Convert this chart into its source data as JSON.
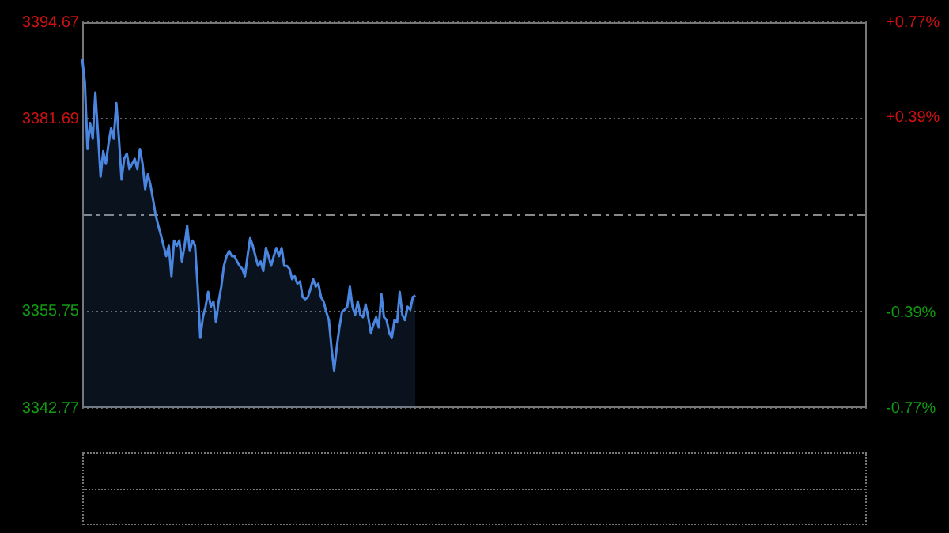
{
  "chart_data": {
    "type": "area",
    "tick_labels": "y",
    "grid": "y",
    "categories": [
      null,
      null,
      null,
      null,
      null,
      null,
      null,
      null,
      null,
      null,
      null,
      null,
      null,
      null,
      null,
      null,
      null,
      null,
      null,
      null,
      null,
      null,
      null,
      null,
      null,
      null,
      null,
      null,
      null,
      null,
      null,
      null,
      null,
      null,
      null,
      null,
      null,
      null,
      null,
      null,
      null,
      null,
      null,
      null,
      null,
      null,
      null,
      null,
      null,
      null,
      null,
      null,
      null,
      null,
      null,
      null,
      null,
      null,
      null,
      null,
      null,
      null,
      null,
      null,
      null,
      null,
      null,
      null,
      null,
      null,
      null,
      null,
      null,
      null,
      null,
      null,
      null,
      null,
      null,
      null,
      null,
      null,
      null,
      null,
      null,
      null,
      null,
      null,
      null,
      null,
      null,
      null,
      null,
      null,
      null,
      null,
      null,
      null,
      null,
      null,
      null,
      null,
      null,
      null,
      null,
      null,
      null,
      null,
      null,
      null,
      null,
      null,
      null,
      null,
      null,
      null,
      null,
      null,
      null,
      null,
      null,
      null,
      null,
      null,
      null,
      null,
      null,
      null,
      null,
      null,
      null,
      null,
      null,
      null,
      null,
      null,
      null,
      null,
      null,
      null,
      null,
      null,
      null,
      null,
      null,
      null,
      null,
      null,
      null,
      null,
      null,
      null,
      null,
      null,
      null,
      null,
      null,
      null,
      null,
      null,
      null,
      null,
      null,
      null,
      null,
      null,
      null,
      null,
      null,
      null,
      null,
      null,
      null,
      null,
      null,
      null,
      null,
      null,
      null,
      null,
      null,
      null,
      null,
      null,
      null,
      null,
      null,
      null,
      null,
      null,
      null,
      null,
      null,
      null,
      null,
      null,
      null,
      null,
      null,
      null,
      null,
      null,
      null,
      null,
      null,
      null,
      null,
      null,
      null,
      null,
      null,
      null,
      null,
      null,
      null,
      null,
      null,
      null,
      null,
      null,
      null,
      null,
      null,
      null,
      null,
      null,
      null,
      null,
      null,
      null,
      null,
      null,
      null,
      null,
      null,
      null,
      null,
      null,
      null,
      null,
      null,
      null,
      null,
      null,
      null,
      null,
      null,
      null,
      null,
      null,
      null,
      null,
      null,
      null,
      null,
      null,
      null,
      null,
      null,
      null,
      null,
      null,
      null,
      null,
      null,
      null,
      null,
      null,
      null,
      null,
      null,
      null,
      null,
      null,
      null,
      null,
      null,
      null,
      null,
      null,
      null,
      null,
      null,
      null,
      null,
      null,
      null,
      null,
      null,
      null,
      null,
      null,
      null,
      null,
      null,
      null,
      null,
      null,
      null,
      null
    ],
    "ylim": [
      3342.77,
      3394.67
    ],
    "yticks": [
      3342.77,
      3355.75,
      3381.69,
      3394.67
    ],
    "y2lim": [
      -0.77,
      0.77
    ],
    "y2ticks": [
      {
        "value": -0.77,
        "label": "-0.77%"
      },
      {
        "value": -0.39,
        "label": "-0.39%"
      },
      {
        "value": 0.39,
        "label": "+0.39%"
      },
      {
        "value": 0.77,
        "label": "+0.77%"
      }
    ],
    "ref_lines": [
      {
        "axis": "y",
        "value": 3368.72,
        "color": "#888888",
        "line_style": "dashed"
      }
    ],
    "series": [
      {
        "color": "#4a86e0",
        "values": [
          3389.7,
          3386.6,
          3377.6,
          3381.1,
          3379.0,
          3385.2,
          3379.7,
          3373.9,
          3377.3,
          3375.6,
          3378.3,
          3380.4,
          3379.0,
          3383.8,
          3379.0,
          3373.5,
          3376.3,
          3377.0,
          3374.9,
          3375.6,
          3376.3,
          3374.9,
          3377.6,
          3375.6,
          3372.2,
          3374.2,
          3372.8,
          3370.8,
          3368.7,
          3367.3,
          3366.0,
          3364.6,
          3363.2,
          3364.6,
          3360.5,
          3365.3,
          3364.6,
          3365.3,
          3362.5,
          3364.6,
          3367.3,
          3363.9,
          3365.3,
          3364.6,
          3359.1,
          3352.2,
          3355.0,
          3356.4,
          3358.4,
          3356.4,
          3357.1,
          3354.3,
          3357.1,
          3359.1,
          3361.9,
          3363.2,
          3363.9,
          3363.2,
          3363.2,
          3362.5,
          3361.9,
          3361.5,
          3360.5,
          3363.2,
          3365.6,
          3364.6,
          3363.2,
          3361.9,
          3362.5,
          3361.2,
          3364.3,
          3363.2,
          3361.9,
          3363.2,
          3364.3,
          3363.2,
          3364.3,
          3361.9,
          3361.9,
          3361.5,
          3360.1,
          3360.5,
          3359.5,
          3359.8,
          3357.7,
          3357.4,
          3357.7,
          3358.8,
          3360.1,
          3359.1,
          3359.5,
          3357.7,
          3357.1,
          3355.7,
          3354.6,
          3350.9,
          3347.8,
          3350.9,
          3353.6,
          3355.7,
          3356.0,
          3356.4,
          3359.1,
          3356.4,
          3355.3,
          3357.1,
          3355.3,
          3355.0,
          3356.7,
          3355.0,
          3352.9,
          3354.0,
          3355.0,
          3353.6,
          3358.1,
          3355.0,
          3354.6,
          3352.9,
          3352.2,
          3354.6,
          3354.3,
          3358.4,
          3355.3,
          3354.6,
          3356.4,
          3356.0,
          3357.7,
          3357.9,
          null,
          null,
          null,
          null,
          null,
          null,
          null,
          null,
          null,
          null,
          null,
          null,
          null,
          null,
          null,
          null,
          null,
          null,
          null,
          null,
          null,
          null,
          null,
          null,
          null,
          null,
          null,
          null,
          null,
          null,
          null,
          null,
          null,
          null,
          null,
          null,
          null,
          null,
          null,
          null,
          null,
          null,
          null,
          null,
          null,
          null,
          null,
          null,
          null,
          null,
          null,
          null,
          null,
          null,
          null,
          null,
          null,
          null,
          null,
          null,
          null,
          null,
          null,
          null,
          null,
          null,
          null,
          null,
          null,
          null,
          null,
          null,
          null,
          null,
          null,
          null,
          null,
          null,
          null,
          null,
          null,
          null,
          null,
          null,
          null,
          null,
          null,
          null,
          null,
          null,
          null,
          null,
          null,
          null,
          null,
          null,
          null,
          null,
          null,
          null,
          null,
          null,
          null,
          null,
          null,
          null,
          null,
          null,
          null,
          null,
          null,
          null,
          null,
          null,
          null,
          null,
          null,
          null,
          null,
          null,
          null,
          null,
          null,
          null,
          null,
          null,
          null,
          null,
          null,
          null,
          null,
          null,
          null,
          null,
          null,
          null,
          null,
          null,
          null,
          null,
          null,
          null,
          null,
          null,
          null,
          null,
          null,
          null,
          null,
          null,
          null,
          null,
          null,
          null,
          null,
          null,
          null,
          null,
          null,
          null,
          null,
          null,
          null,
          null,
          null,
          null,
          null,
          null,
          null,
          null,
          null,
          null
        ]
      }
    ]
  }
}
